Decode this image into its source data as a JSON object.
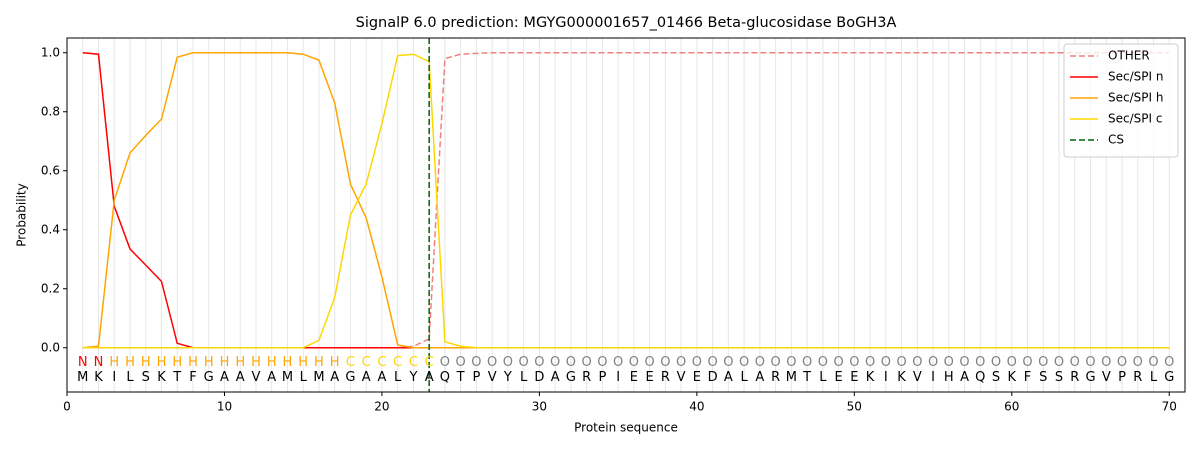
{
  "chart_data": {
    "type": "line",
    "title": "SignalP 6.0 prediction: MGYG000001657_01466 Beta-glucosidase BoGH3A",
    "x_label": "Protein sequence",
    "y_label": "Probability",
    "x": [
      1,
      2,
      3,
      4,
      5,
      6,
      7,
      8,
      9,
      10,
      11,
      12,
      13,
      14,
      15,
      16,
      17,
      18,
      19,
      20,
      21,
      22,
      23,
      24,
      25,
      26,
      27,
      28,
      29,
      30,
      31,
      32,
      33,
      34,
      35,
      36,
      37,
      38,
      39,
      40,
      41,
      42,
      43,
      44,
      45,
      46,
      47,
      48,
      49,
      50,
      51,
      52,
      53,
      54,
      55,
      56,
      57,
      58,
      59,
      60,
      61,
      62,
      63,
      64,
      65,
      66,
      67,
      68,
      69,
      70
    ],
    "residues": [
      "M",
      "K",
      "I",
      "L",
      "S",
      "K",
      "T",
      "F",
      "G",
      "A",
      "A",
      "V",
      "A",
      "M",
      "L",
      "M",
      "A",
      "G",
      "A",
      "A",
      "L",
      "Y",
      "A",
      "Q",
      "T",
      "P",
      "V",
      "Y",
      "L",
      "D",
      "A",
      "G",
      "R",
      "P",
      "I",
      "E",
      "E",
      "R",
      "V",
      "E",
      "D",
      "A",
      "L",
      "A",
      "R",
      "M",
      "T",
      "L",
      "E",
      "E",
      "K",
      "I",
      "K",
      "V",
      "I",
      "H",
      "A",
      "Q",
      "S",
      "K",
      "F",
      "S",
      "S",
      "R",
      "G",
      "V",
      "P",
      "R",
      "L",
      "G"
    ],
    "residue_labels": [
      "N",
      "N",
      "H",
      "H",
      "H",
      "H",
      "H",
      "H",
      "H",
      "H",
      "H",
      "H",
      "H",
      "H",
      "H",
      "H",
      "H",
      "C",
      "C",
      "C",
      "C",
      "C",
      "C",
      "O",
      "O",
      "O",
      "O",
      "O",
      "O",
      "O",
      "O",
      "O",
      "O",
      "O",
      "O",
      "O",
      "O",
      "O",
      "O",
      "O",
      "O",
      "O",
      "O",
      "O",
      "O",
      "O",
      "O",
      "O",
      "O",
      "O",
      "O",
      "O",
      "O",
      "O",
      "O",
      "O",
      "O",
      "O",
      "O",
      "O",
      "O",
      "O",
      "O",
      "O",
      "O",
      "O",
      "O",
      "O",
      "O",
      "O"
    ],
    "residue_label_colors": {
      "N": "#ff0000",
      "H": "#ffa500",
      "C": "#ffd700",
      "O": "#808080"
    },
    "series": [
      {
        "name": "OTHER",
        "color": "#f08080",
        "dashed": true,
        "values": [
          0,
          0,
          0,
          0,
          0,
          0,
          0,
          0,
          0,
          0,
          0,
          0,
          0,
          0,
          0,
          0,
          0,
          0,
          0,
          0,
          0,
          0.005,
          0.03,
          0.98,
          0.995,
          0.998,
          1,
          1,
          1,
          1,
          1,
          1,
          1,
          1,
          1,
          1,
          1,
          1,
          1,
          1,
          1,
          1,
          1,
          1,
          1,
          1,
          1,
          1,
          1,
          1,
          1,
          1,
          1,
          1,
          1,
          1,
          1,
          1,
          1,
          1,
          1,
          1,
          1,
          1,
          1,
          1,
          1,
          1,
          1,
          1
        ]
      },
      {
        "name": "Sec/SPI n",
        "color": "#ff0000",
        "dashed": false,
        "values": [
          1.0,
          0.995,
          0.48,
          0.335,
          0.28,
          0.225,
          0.015,
          0,
          0,
          0,
          0,
          0,
          0,
          0,
          0,
          0,
          0,
          0,
          0,
          0,
          0,
          0,
          0,
          0,
          0,
          0,
          0,
          0,
          0,
          0,
          0,
          0,
          0,
          0,
          0,
          0,
          0,
          0,
          0,
          0,
          0,
          0,
          0,
          0,
          0,
          0,
          0,
          0,
          0,
          0,
          0,
          0,
          0,
          0,
          0,
          0,
          0,
          0,
          0,
          0,
          0,
          0,
          0,
          0,
          0,
          0,
          0,
          0,
          0,
          0
        ]
      },
      {
        "name": "Sec/SPI h",
        "color": "#ffa500",
        "dashed": false,
        "values": [
          0,
          0.005,
          0.5,
          0.66,
          0.72,
          0.775,
          0.985,
          1,
          1,
          1,
          1,
          1,
          1,
          1,
          0.995,
          0.975,
          0.83,
          0.555,
          0.44,
          0.24,
          0.01,
          0,
          0,
          0,
          0,
          0,
          0,
          0,
          0,
          0,
          0,
          0,
          0,
          0,
          0,
          0,
          0,
          0,
          0,
          0,
          0,
          0,
          0,
          0,
          0,
          0,
          0,
          0,
          0,
          0,
          0,
          0,
          0,
          0,
          0,
          0,
          0,
          0,
          0,
          0,
          0,
          0,
          0,
          0,
          0,
          0,
          0,
          0,
          0,
          0
        ]
      },
      {
        "name": "Sec/SPI c",
        "color": "#ffd700",
        "dashed": false,
        "values": [
          0,
          0,
          0,
          0,
          0,
          0,
          0,
          0,
          0,
          0,
          0,
          0,
          0,
          0,
          0,
          0.025,
          0.17,
          0.45,
          0.555,
          0.76,
          0.99,
          0.995,
          0.97,
          0.02,
          0.005,
          0,
          0,
          0,
          0,
          0,
          0,
          0,
          0,
          0,
          0,
          0,
          0,
          0,
          0,
          0,
          0,
          0,
          0,
          0,
          0,
          0,
          0,
          0,
          0,
          0,
          0,
          0,
          0,
          0,
          0,
          0,
          0,
          0,
          0,
          0,
          0,
          0,
          0,
          0,
          0,
          0,
          0,
          0,
          0,
          0
        ]
      }
    ],
    "cleavage_site": {
      "name": "CS",
      "x": 23,
      "color": "#006400",
      "dashed": true
    },
    "xlim": [
      0,
      71
    ],
    "ylim": [
      -0.15,
      1.05
    ],
    "xticks": [
      0,
      10,
      20,
      30,
      40,
      50,
      60,
      70
    ],
    "yticks": [
      {
        "value": 0,
        "label": "0.0"
      },
      {
        "value": 0.2,
        "label": "0.2"
      },
      {
        "value": 0.4,
        "label": "0.4"
      },
      {
        "value": 0.6,
        "label": "0.6"
      },
      {
        "value": 0.8,
        "label": "0.8"
      },
      {
        "value": 1,
        "label": "1.0"
      }
    ],
    "grid": true,
    "legend": "upper right"
  }
}
